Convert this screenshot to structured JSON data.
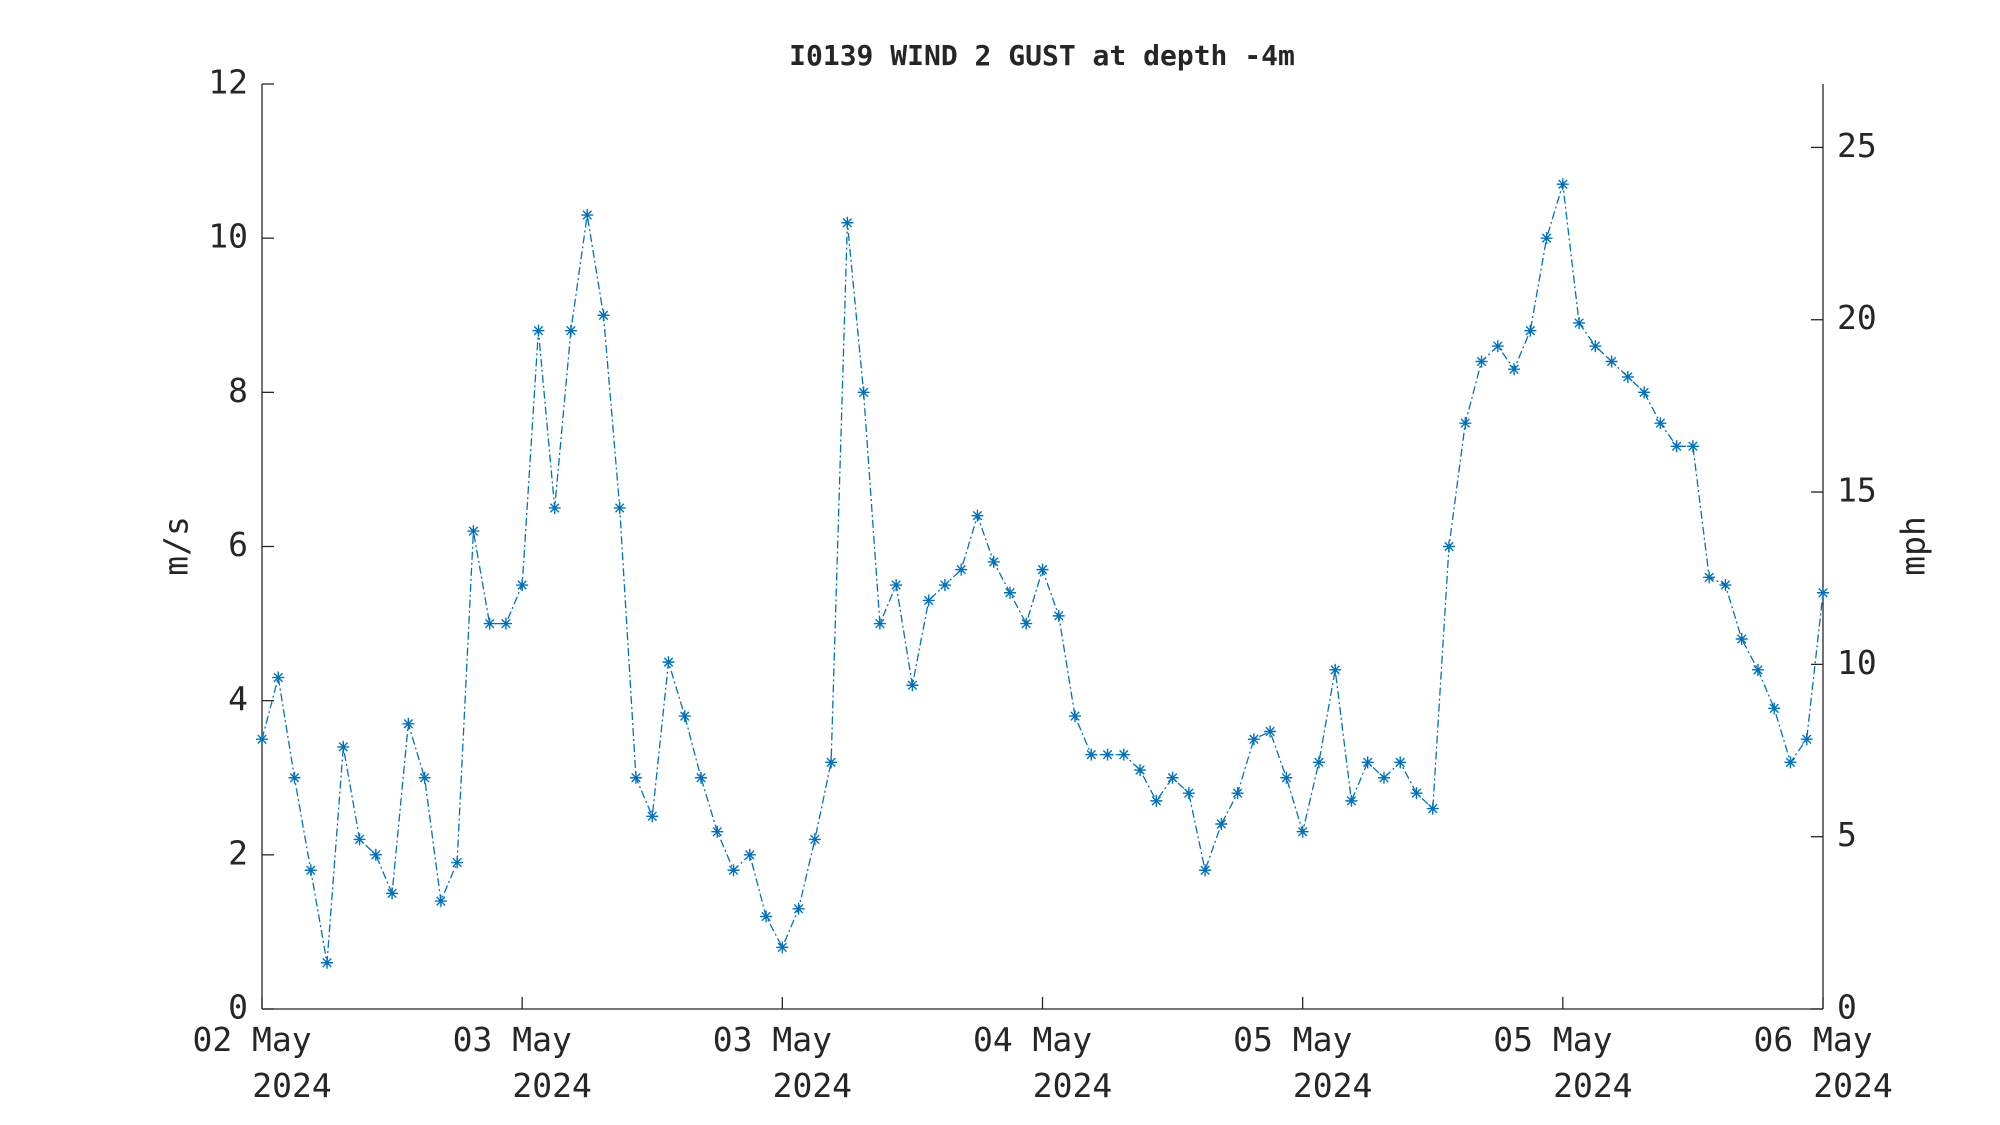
{
  "chart_data": {
    "type": "line",
    "title": "I0139 WIND 2 GUST at depth -4m",
    "ylabel": "m/s",
    "y2label": "mph",
    "x": [
      0,
      1,
      2,
      3,
      4,
      5,
      6,
      7,
      8,
      9,
      10,
      11,
      12,
      13,
      14,
      15,
      16,
      17,
      18,
      19,
      20,
      21,
      22,
      23,
      24,
      25,
      26,
      27,
      28,
      29,
      30,
      31,
      32,
      33,
      34,
      35,
      36,
      37,
      38,
      39,
      40,
      41,
      42,
      43,
      44,
      45,
      46,
      47,
      48,
      49,
      50,
      51,
      52,
      53,
      54,
      55,
      56,
      57,
      58,
      59,
      60,
      61,
      62,
      63,
      64,
      65,
      66,
      67,
      68,
      69,
      70,
      71,
      72,
      73,
      74,
      75,
      76,
      77,
      78,
      79,
      80,
      81,
      82,
      83,
      84,
      85,
      86,
      87,
      88,
      89,
      90,
      91,
      92,
      93,
      94,
      95,
      96
    ],
    "series": [
      {
        "name": "WIND 2 GUST",
        "color": "#0072bd",
        "values": [
          3.5,
          4.3,
          3.0,
          1.8,
          0.6,
          3.4,
          2.2,
          2.0,
          1.5,
          3.7,
          3.0,
          1.4,
          1.9,
          6.2,
          5.0,
          5.0,
          5.5,
          8.8,
          6.5,
          8.8,
          10.3,
          9.0,
          6.5,
          3.0,
          2.5,
          4.5,
          3.8,
          3.0,
          2.3,
          1.8,
          2.0,
          1.2,
          0.8,
          1.3,
          2.2,
          3.2,
          10.2,
          8.0,
          5.0,
          5.5,
          4.2,
          5.3,
          5.5,
          5.7,
          6.4,
          5.8,
          5.4,
          5.0,
          5.7,
          5.1,
          3.8,
          3.3,
          3.3,
          3.3,
          3.1,
          2.7,
          3.0,
          2.8,
          1.8,
          2.4,
          2.8,
          3.5,
          3.6,
          3.0,
          2.3,
          3.2,
          4.4,
          2.7,
          3.2,
          3.0,
          3.2,
          2.8,
          2.6,
          6.0,
          7.6,
          8.4,
          8.6,
          8.3,
          8.8,
          10.0,
          10.7,
          8.9,
          8.6,
          8.4,
          8.2,
          8.0,
          7.6,
          7.3,
          7.3,
          5.6,
          5.5,
          4.8,
          4.4,
          3.9,
          3.2,
          3.5,
          5.4
        ]
      }
    ],
    "xlim": [
      0,
      96
    ],
    "xticks": [
      {
        "value": 0,
        "label": "02 May 2024"
      },
      {
        "value": 16,
        "label": "03 May 2024"
      },
      {
        "value": 32,
        "label": "03 May 2024"
      },
      {
        "value": 48,
        "label": "04 May 2024"
      },
      {
        "value": 64,
        "label": "05 May 2024"
      },
      {
        "value": 80,
        "label": "05 May 2024"
      },
      {
        "value": 96,
        "label": "06 May 2024"
      }
    ],
    "ylim": [
      0,
      12
    ],
    "yticks": [
      0,
      2,
      4,
      6,
      8,
      10,
      12
    ],
    "y2lim": [
      0,
      26.84
    ],
    "y2ticks": [
      0,
      5,
      10,
      15,
      20,
      25
    ],
    "grid": false
  }
}
